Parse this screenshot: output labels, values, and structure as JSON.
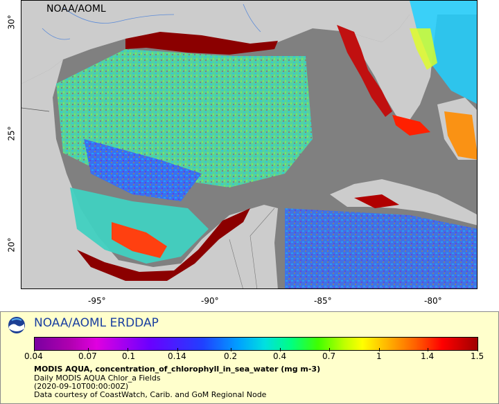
{
  "map": {
    "source_tag": "NOAA/AOML",
    "x_ticks": [
      "-95°",
      "-90°",
      "-85°",
      "-80°"
    ],
    "y_ticks": [
      "30°",
      "25°",
      "20°"
    ]
  },
  "legend": {
    "title": "NOAA/AOML ERDDAP",
    "colorbar_labels": [
      "0.04",
      "0.07",
      "0.1",
      "0.14",
      "0.2",
      "0.4",
      "0.7",
      "1",
      "1.4",
      "1.5"
    ],
    "variable": "MODIS AQUA, concentration_of_chlorophyll_in_sea_water (mg m-3)",
    "dataset": "Daily MODIS AQUA Chlor_a Fields",
    "time": "(2020-09-10T00:00:00Z)",
    "credit": "Data courtesy of CoastWatch, Carib. and GoM Regional Node"
  },
  "colors": {
    "land": "#cccccc",
    "no_data": "#808080",
    "high_chl": "#8b0000",
    "legend_bg": "#ffffcc",
    "title_blue": "#1a3fa0"
  }
}
